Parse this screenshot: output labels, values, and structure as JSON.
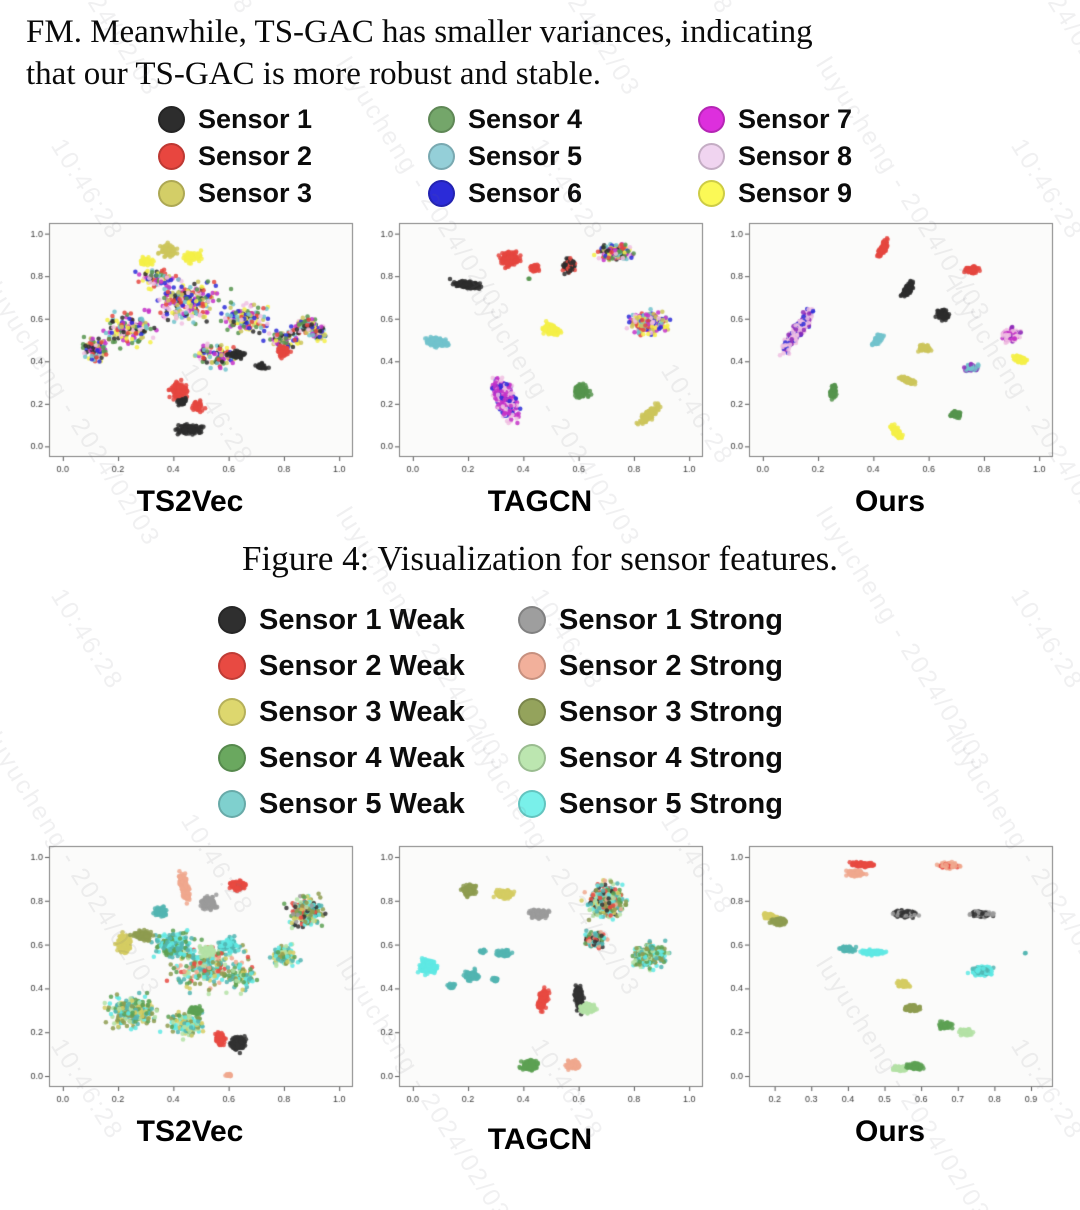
{
  "intro": {
    "line1": "FM. Meanwhile, TS-GAC has smaller variances, indicating",
    "line2": "that our TS-GAC is more robust and stable."
  },
  "caption": "Figure 4: Visualization for sensor features.",
  "watermark": {
    "text1": "luyucheng - 2024/02/03",
    "text2": "10:46:28"
  },
  "palette": {
    "s1": "#2d2d2d",
    "s2": "#e54740",
    "s3": "#cdc65c",
    "s4": "#56944d",
    "s5": "#72c3cd",
    "s6": "#2d2dd8",
    "s7": "#c432c8",
    "s8": "#f0c0e2",
    "s9": "#f5f048",
    "pu": "#8e2bb8",
    "w1": "#333333",
    "w2": "#e84a42",
    "w3": "#d5cd63",
    "w4": "#5da153",
    "w5": "#52b5b2",
    "g1": "#9b9b9b",
    "g2": "#f0a88e",
    "g3": "#8e9c50",
    "g4": "#b4e2a6",
    "g5": "#5fe9e4"
  },
  "legend1": {
    "items": [
      {
        "label": "Sensor 1",
        "color": "#2d2d2d"
      },
      {
        "label": "Sensor 2",
        "color": "#e8463f"
      },
      {
        "label": "Sensor 3",
        "color": "#d3ce67"
      },
      {
        "label": "Sensor 4",
        "color": "#74a66a"
      },
      {
        "label": "Sensor 5",
        "color": "#94cfd8"
      },
      {
        "label": "Sensor 6",
        "color": "#2b2bd8"
      },
      {
        "label": "Sensor 7",
        "color": "#dd2fdd"
      },
      {
        "label": "Sensor 8",
        "color": "#f0d4f0"
      },
      {
        "label": "Sensor 9",
        "color": "#fbf956"
      }
    ]
  },
  "legend2": {
    "items": [
      {
        "label": "Sensor 1 Weak",
        "color": "#2f2f2f"
      },
      {
        "label": "Sensor 1 Strong",
        "color": "#9e9e9e"
      },
      {
        "label": "Sensor 2 Weak",
        "color": "#e84a42"
      },
      {
        "label": "Sensor 2 Strong",
        "color": "#f2b09b"
      },
      {
        "label": "Sensor 3 Weak",
        "color": "#ddd76e"
      },
      {
        "label": "Sensor 3 Strong",
        "color": "#94a35c"
      },
      {
        "label": "Sensor 4 Weak",
        "color": "#6aa85f"
      },
      {
        "label": "Sensor 4 Strong",
        "color": "#bce6b0"
      },
      {
        "label": "Sensor 5 Weak",
        "color": "#7fd0ce"
      },
      {
        "label": "Sensor 5 Strong",
        "color": "#79f0ea"
      }
    ]
  },
  "chart_data": [
    {
      "type": "scatter",
      "title": "TS2Vec",
      "xlim": [
        -0.05,
        1.05
      ],
      "ylim": [
        -0.05,
        1.05
      ],
      "xticks": [
        0,
        0.2,
        0.4,
        0.6,
        0.8,
        1.0
      ],
      "yticks": [
        0,
        0.2,
        0.4,
        0.6,
        0.8,
        1.0
      ],
      "note": "all 9 sensors heavily mixed in one blob; red & black partly separated at bottom",
      "clusters": [
        [
          "s1+s2+s3+s4+s5+s6+s7+s8+s9",
          0.45,
          0.68,
          0.2,
          0.15,
          0,
          240
        ],
        [
          "s1+s2+s3+s4+s5+s6+s7+s8+s9",
          0.24,
          0.55,
          0.13,
          0.12,
          0,
          150
        ],
        [
          "s1+s2+s3+s4+s5+s6+s7+s8+s9",
          0.12,
          0.46,
          0.07,
          0.09,
          0,
          80
        ],
        [
          "s1+s2+s3+s4+s5+s6+s7+s8+s9",
          0.66,
          0.6,
          0.12,
          0.11,
          0,
          140
        ],
        [
          "s1+s2+s3+s4+s5+s6+s7+s8+s9",
          0.8,
          0.5,
          0.09,
          0.09,
          0,
          100
        ],
        [
          "s1+s2+s3+s4+s5+s6+s7+s8+s9",
          0.92,
          0.53,
          0.05,
          0.07,
          0,
          50
        ],
        [
          "s1+s2+s3+s4+s5+s6+s7+s8+s9",
          0.55,
          0.43,
          0.12,
          0.08,
          0,
          90
        ],
        [
          "s1+s2+s3+s4+s5+s6+s7+s8+s9",
          0.34,
          0.79,
          0.1,
          0.07,
          0,
          80
        ],
        [
          "s3",
          0.38,
          0.92,
          0.05,
          0.045,
          20,
          70
        ],
        [
          "s9",
          0.47,
          0.89,
          0.055,
          0.045,
          0,
          60
        ],
        [
          "s9",
          0.3,
          0.87,
          0.04,
          0.035,
          0,
          40
        ],
        [
          "s2",
          0.42,
          0.26,
          0.05,
          0.07,
          0,
          140
        ],
        [
          "s2",
          0.49,
          0.19,
          0.03,
          0.04,
          0,
          50
        ],
        [
          "s1",
          0.46,
          0.08,
          0.07,
          0.035,
          5,
          120
        ],
        [
          "s1",
          0.43,
          0.21,
          0.028,
          0.028,
          0,
          35
        ],
        [
          "s1",
          0.63,
          0.43,
          0.05,
          0.03,
          0,
          55
        ],
        [
          "s1",
          0.72,
          0.38,
          0.035,
          0.025,
          0,
          30
        ],
        [
          "s2",
          0.8,
          0.45,
          0.035,
          0.05,
          0,
          45
        ],
        [
          "s1+s2+s3+s4+s5+s6+s7+s8+s9",
          0.88,
          0.57,
          0.06,
          0.05,
          45,
          60
        ]
      ]
    },
    {
      "type": "scatter",
      "title": "TAGCN",
      "xlim": [
        -0.05,
        1.05
      ],
      "ylim": [
        -0.05,
        1.05
      ],
      "xticks": [
        0,
        0.2,
        0.4,
        0.6,
        0.8,
        1.0
      ],
      "yticks": [
        0,
        0.2,
        0.4,
        0.6,
        0.8,
        1.0
      ],
      "clusters": [
        [
          "s1",
          0.2,
          0.76,
          0.075,
          0.028,
          -8,
          170
        ],
        [
          "s2",
          0.35,
          0.88,
          0.05,
          0.05,
          0,
          140
        ],
        [
          "s2",
          0.44,
          0.84,
          0.028,
          0.028,
          0,
          40
        ],
        [
          "s2+s1",
          0.565,
          0.85,
          0.032,
          0.05,
          0,
          120
        ],
        [
          "s9+s7+s8+s6+s3+s5+s2+s1+s4",
          0.73,
          0.91,
          0.085,
          0.055,
          0,
          240
        ],
        [
          "s9+s7+s8+s6+s3+s5+s2",
          0.85,
          0.58,
          0.105,
          0.075,
          0,
          300
        ],
        [
          "s5",
          0.085,
          0.49,
          0.065,
          0.032,
          -10,
          160
        ],
        [
          "s9",
          0.5,
          0.55,
          0.05,
          0.038,
          -15,
          120
        ],
        [
          "s8+s7+s6+s8+s7",
          0.335,
          0.22,
          0.05,
          0.145,
          15,
          400
        ],
        [
          "s4",
          0.61,
          0.26,
          0.038,
          0.05,
          10,
          130
        ],
        [
          "s3",
          0.855,
          0.15,
          0.026,
          0.08,
          -35,
          150
        ],
        [
          "s4",
          0.42,
          0.79,
          0.006,
          0.006,
          0,
          2
        ]
      ]
    },
    {
      "type": "scatter",
      "title": "Ours",
      "xlim": [
        -0.05,
        1.05
      ],
      "ylim": [
        -0.05,
        1.05
      ],
      "xticks": [
        0,
        0.2,
        0.4,
        0.6,
        0.8,
        1.0
      ],
      "yticks": [
        0,
        0.2,
        0.4,
        0.6,
        0.8,
        1.0
      ],
      "clusters": [
        [
          "s2",
          0.435,
          0.93,
          0.02,
          0.065,
          -22,
          110
        ],
        [
          "s2",
          0.755,
          0.83,
          0.038,
          0.028,
          0,
          85
        ],
        [
          "s1",
          0.525,
          0.74,
          0.02,
          0.06,
          -26,
          110
        ],
        [
          "s1",
          0.65,
          0.62,
          0.03,
          0.038,
          0,
          80
        ],
        [
          "s8+s8+s8+s6+pu",
          0.13,
          0.55,
          0.032,
          0.165,
          -26,
          340
        ],
        [
          "s5",
          0.415,
          0.5,
          0.018,
          0.05,
          -30,
          90
        ],
        [
          "s3",
          0.585,
          0.46,
          0.032,
          0.026,
          0,
          70
        ],
        [
          "s8+s8+pu+s7",
          0.895,
          0.52,
          0.048,
          0.045,
          0,
          170
        ],
        [
          "s9",
          0.93,
          0.41,
          0.038,
          0.026,
          -30,
          80
        ],
        [
          "s5+s5+pu",
          0.755,
          0.37,
          0.038,
          0.026,
          0,
          85
        ],
        [
          "s4",
          0.255,
          0.26,
          0.016,
          0.05,
          -8,
          80
        ],
        [
          "s3",
          0.525,
          0.31,
          0.05,
          0.018,
          -25,
          95
        ],
        [
          "s4",
          0.7,
          0.15,
          0.03,
          0.024,
          0,
          65
        ],
        [
          "s9",
          0.485,
          0.065,
          0.018,
          0.055,
          28,
          100
        ]
      ]
    },
    {
      "type": "scatter",
      "title": "TS2Vec",
      "xlim": [
        -0.05,
        1.05
      ],
      "ylim": [
        -0.05,
        1.05
      ],
      "xticks": [
        0,
        0.2,
        0.4,
        0.6,
        0.8,
        1.0
      ],
      "yticks": [
        0,
        0.2,
        0.4,
        0.6,
        0.8,
        1.0
      ],
      "clusters": [
        [
          "w3+g3+w4+g4+w5+g5+w2+g2",
          0.52,
          0.5,
          0.21,
          0.17,
          0,
          280
        ],
        [
          "w3+g3+w4+g4+w5+g5",
          0.25,
          0.3,
          0.14,
          0.11,
          0,
          240
        ],
        [
          "w3+g3+w4+g4+w5+g5",
          0.45,
          0.24,
          0.11,
          0.09,
          0,
          140
        ],
        [
          "w5+g5+w4",
          0.4,
          0.6,
          0.11,
          0.09,
          0,
          140
        ],
        [
          "w3+g3+w4+g4+w5+g5+w1+w2+g1",
          0.88,
          0.75,
          0.09,
          0.11,
          0,
          210
        ],
        [
          "w3+g3+w4+g4+w5+g5",
          0.8,
          0.55,
          0.08,
          0.07,
          0,
          100
        ],
        [
          "w3+g3+w4+g4+w5+g5",
          0.65,
          0.45,
          0.08,
          0.07,
          0,
          80
        ],
        [
          "g5+w5",
          0.6,
          0.6,
          0.07,
          0.05,
          0,
          70
        ],
        [
          "g2",
          0.44,
          0.86,
          0.024,
          0.1,
          12,
          170
        ],
        [
          "g1",
          0.53,
          0.79,
          0.042,
          0.045,
          0,
          150
        ],
        [
          "w2",
          0.635,
          0.87,
          0.045,
          0.032,
          0,
          120
        ],
        [
          "w3",
          0.22,
          0.6,
          0.04,
          0.065,
          0,
          170
        ],
        [
          "g3",
          0.29,
          0.64,
          0.05,
          0.03,
          -20,
          110
        ],
        [
          "w1",
          0.635,
          0.15,
          0.04,
          0.05,
          -30,
          150
        ],
        [
          "w2",
          0.57,
          0.17,
          0.028,
          0.045,
          0,
          90
        ],
        [
          "w4",
          0.48,
          0.3,
          0.035,
          0.035,
          0,
          60
        ],
        [
          "g4",
          0.52,
          0.57,
          0.045,
          0.035,
          0,
          60
        ],
        [
          "w5",
          0.35,
          0.75,
          0.035,
          0.045,
          0,
          60
        ],
        [
          "g2",
          0.6,
          0.005,
          0.018,
          0.008,
          0,
          18
        ]
      ]
    },
    {
      "type": "scatter",
      "title": "TAGCN",
      "xlim": [
        -0.05,
        1.05
      ],
      "ylim": [
        -0.05,
        1.05
      ],
      "xticks": [
        0,
        0.2,
        0.4,
        0.6,
        0.8,
        1.0
      ],
      "yticks": [
        0,
        0.2,
        0.4,
        0.6,
        0.8,
        1.0
      ],
      "clusters": [
        [
          "g3",
          0.205,
          0.85,
          0.038,
          0.038,
          0,
          130
        ],
        [
          "w3",
          0.33,
          0.83,
          0.05,
          0.028,
          -10,
          130
        ],
        [
          "g1",
          0.455,
          0.74,
          0.048,
          0.032,
          0,
          150
        ],
        [
          "g5+w5+w4+g4+g2+w2+g3+w3+w1",
          0.7,
          0.8,
          0.095,
          0.115,
          0,
          400
        ],
        [
          "g5+w5+w4+g4+g3",
          0.86,
          0.55,
          0.1,
          0.075,
          25,
          260
        ],
        [
          "g5+w5+w2+w1+g2+w4",
          0.66,
          0.62,
          0.055,
          0.055,
          0,
          130
        ],
        [
          "g5",
          0.055,
          0.5,
          0.048,
          0.052,
          0,
          190
        ],
        [
          "w5",
          0.21,
          0.46,
          0.045,
          0.038,
          0,
          90
        ],
        [
          "w5",
          0.33,
          0.56,
          0.045,
          0.024,
          0,
          80
        ],
        [
          "w5",
          0.25,
          0.57,
          0.018,
          0.018,
          0,
          18
        ],
        [
          "w5",
          0.14,
          0.41,
          0.025,
          0.018,
          0,
          22
        ],
        [
          "w2",
          0.47,
          0.35,
          0.024,
          0.075,
          -12,
          170
        ],
        [
          "w1",
          0.6,
          0.36,
          0.022,
          0.085,
          4,
          180
        ],
        [
          "g4",
          0.635,
          0.31,
          0.042,
          0.032,
          0,
          130
        ],
        [
          "w4",
          0.425,
          0.05,
          0.048,
          0.032,
          0,
          140
        ],
        [
          "g2",
          0.58,
          0.05,
          0.038,
          0.028,
          0,
          110
        ],
        [
          "w5",
          0.3,
          0.44,
          0.02,
          0.02,
          0,
          20
        ]
      ]
    },
    {
      "type": "scatter",
      "title": "Ours",
      "xlim": [
        0.13,
        0.96
      ],
      "ylim": [
        -0.05,
        1.05
      ],
      "xticks": [
        0.2,
        0.3,
        0.4,
        0.5,
        0.6,
        0.7,
        0.8,
        0.9
      ],
      "yticks": [
        0,
        0.2,
        0.4,
        0.6,
        0.8,
        1.0
      ],
      "clusters": [
        [
          "w2",
          0.44,
          0.965,
          0.048,
          0.016,
          -6,
          110
        ],
        [
          "g2",
          0.42,
          0.925,
          0.032,
          0.022,
          0,
          90
        ],
        [
          "g2+g2+w2",
          0.675,
          0.96,
          0.04,
          0.02,
          0,
          110
        ],
        [
          "w3",
          0.185,
          0.73,
          0.028,
          0.02,
          0,
          80
        ],
        [
          "g3",
          0.21,
          0.705,
          0.032,
          0.022,
          0,
          95
        ],
        [
          "w1+g1",
          0.555,
          0.74,
          0.048,
          0.022,
          0,
          160
        ],
        [
          "g1+w1",
          0.765,
          0.74,
          0.038,
          0.02,
          0,
          120
        ],
        [
          "w5",
          0.4,
          0.58,
          0.028,
          0.018,
          0,
          70
        ],
        [
          "g5",
          0.47,
          0.565,
          0.048,
          0.016,
          0,
          110
        ],
        [
          "g5+g5+w5",
          0.765,
          0.48,
          0.042,
          0.032,
          0,
          140
        ],
        [
          "w5",
          0.885,
          0.56,
          0.003,
          0.003,
          0,
          2
        ],
        [
          "w3",
          0.55,
          0.42,
          0.028,
          0.024,
          0,
          80
        ],
        [
          "g3",
          0.575,
          0.31,
          0.032,
          0.024,
          0,
          90
        ],
        [
          "w4",
          0.665,
          0.23,
          0.026,
          0.026,
          0,
          70
        ],
        [
          "g4",
          0.72,
          0.2,
          0.026,
          0.023,
          0,
          70
        ],
        [
          "g4",
          0.545,
          0.035,
          0.032,
          0.02,
          0,
          80
        ],
        [
          "w4",
          0.585,
          0.045,
          0.032,
          0.023,
          0,
          80
        ]
      ]
    }
  ]
}
